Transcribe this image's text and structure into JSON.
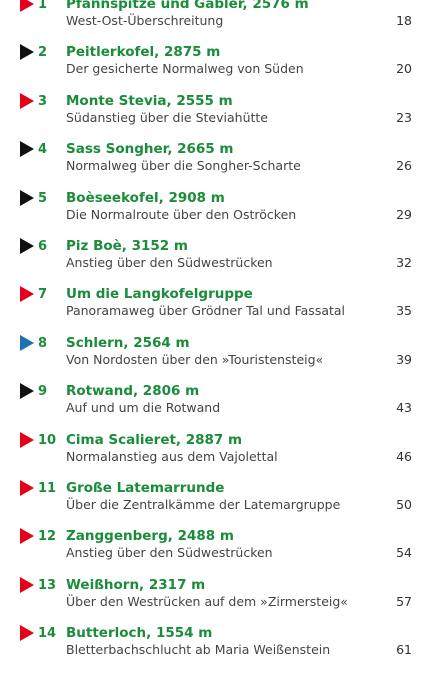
{
  "colors": {
    "title_green": "#1a8c3a",
    "subtitle_gray": "#444444",
    "marker_red": "#e3001b",
    "marker_black": "#111111",
    "marker_blue": "#1f6fb5"
  },
  "entries": [
    {
      "number": "1",
      "title": "Pfannspitze und Gabler, 2576 m",
      "subtitle": "West-Ost-Überschreitung",
      "page": "18",
      "marker": "red"
    },
    {
      "number": "2",
      "title": "Peitlerkofel, 2875 m",
      "subtitle": "Der gesicherte Normalweg von Süden",
      "page": "20",
      "marker": "black"
    },
    {
      "number": "3",
      "title": "Monte Stevia, 2555 m",
      "subtitle": "Südanstieg über die Steviahütte",
      "page": "23",
      "marker": "red"
    },
    {
      "number": "4",
      "title": "Sass Songher, 2665 m",
      "subtitle": "Normalweg über die Songher-Scharte",
      "page": "26",
      "marker": "black"
    },
    {
      "number": "5",
      "title": "Boèseekofel, 2908 m",
      "subtitle": "Die Normalroute über den Oströcken",
      "page": "29",
      "marker": "black"
    },
    {
      "number": "6",
      "title": "Piz Boè, 3152 m",
      "subtitle": "Anstieg über den Südwestrücken",
      "page": "32",
      "marker": "black"
    },
    {
      "number": "7",
      "title": "Um die Langkofelgruppe",
      "subtitle": "Panoramaweg über Grödner Tal und Fassatal",
      "page": "35",
      "marker": "red"
    },
    {
      "number": "8",
      "title": "Schlern, 2564 m",
      "subtitle": "Von Nordosten über den »Touristensteig«",
      "page": "39",
      "marker": "blue"
    },
    {
      "number": "9",
      "title": "Rotwand, 2806 m",
      "subtitle": "Auf und um die Rotwand",
      "page": "43",
      "marker": "black"
    },
    {
      "number": "10",
      "title": "Cima Scalieret, 2887 m",
      "subtitle": "Normalanstieg aus dem Vajolettal",
      "page": "46",
      "marker": "red"
    },
    {
      "number": "11",
      "title": "Große Latemarrunde",
      "subtitle": "Über die Zentralkämme der Latemargruppe",
      "page": "50",
      "marker": "red"
    },
    {
      "number": "12",
      "title": "Zanggenberg, 2488 m",
      "subtitle": "Anstieg über den Südwestrücken",
      "page": "54",
      "marker": "red"
    },
    {
      "number": "13",
      "title": "Weißhorn, 2317 m",
      "subtitle": "Über den Westrücken auf dem »Zirmersteig«",
      "page": "57",
      "marker": "red"
    },
    {
      "number": "14",
      "title": "Butterloch, 1554 m",
      "subtitle": "Bletterbachschlucht ab Maria Weißenstein",
      "page": "61",
      "marker": "red"
    }
  ]
}
